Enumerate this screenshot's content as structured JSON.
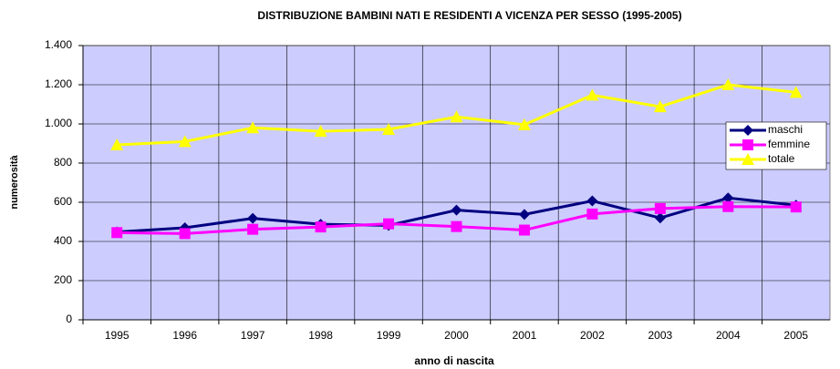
{
  "chart_data": {
    "type": "line",
    "title": "DISTRIBUZIONE BAMBINI NATI E RESIDENTI A VICENZA PER SESSO (1995-2005)",
    "x_label": "anno di nascita",
    "y_label": "numerosità",
    "categories": [
      "1995",
      "1996",
      "1997",
      "1998",
      "1999",
      "2000",
      "2001",
      "2002",
      "2003",
      "2004",
      "2005"
    ],
    "series": [
      {
        "name": "maschi",
        "color": "#000080",
        "marker": "diamond",
        "values": [
          448,
          470,
          518,
          488,
          482,
          560,
          538,
          607,
          520,
          622,
          585
        ]
      },
      {
        "name": "femmine",
        "color": "#ff00ff",
        "marker": "square",
        "values": [
          445,
          440,
          462,
          474,
          490,
          476,
          458,
          540,
          568,
          578,
          576
        ]
      },
      {
        "name": "totale",
        "color": "#ffff00",
        "marker": "triangle",
        "values": [
          893,
          910,
          980,
          962,
          972,
          1036,
          996,
          1147,
          1088,
          1200,
          1161
        ]
      }
    ],
    "ylim": [
      0,
      1400
    ],
    "yticks": [
      0,
      200,
      400,
      600,
      800,
      {
        "value": 1000,
        "label": "1.000"
      },
      {
        "value": 1200,
        "label": "1.200"
      },
      {
        "value": 1400,
        "label": "1.400"
      }
    ],
    "grid": true,
    "plot_background": "#ccccff",
    "legend": "right"
  }
}
